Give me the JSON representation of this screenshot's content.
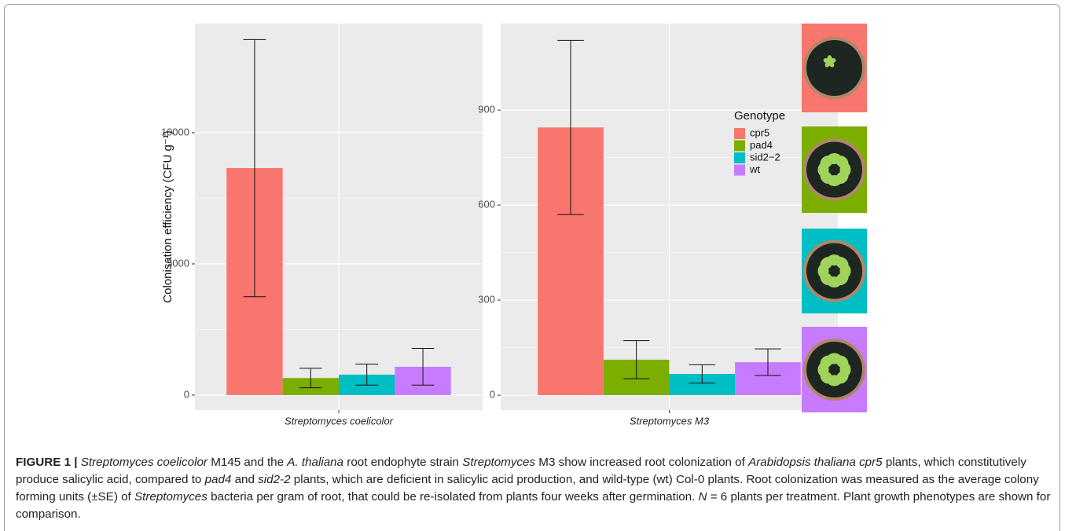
{
  "chart_data": [
    {
      "type": "bar",
      "categories": [
        "Streptomyces coelicolor"
      ],
      "ylabel": "Colonisation efficiency (CFU g⁻¹)",
      "series": [
        {
          "name": "cpr5",
          "color": "#F8766D",
          "values": [
            8650
          ],
          "errors": [
            4900
          ]
        },
        {
          "name": "pad4",
          "color": "#7CAE00",
          "values": [
            650
          ],
          "errors": [
            370
          ]
        },
        {
          "name": "sid2−2",
          "color": "#00BFC4",
          "values": [
            780
          ],
          "errors": [
            400
          ]
        },
        {
          "name": "wt",
          "color": "#C77CFF",
          "values": [
            1080
          ],
          "errors": [
            700
          ]
        }
      ],
      "ylim": [
        -570,
        14160
      ],
      "yticks": [
        0,
        5000,
        10000
      ],
      "grid": true,
      "legend": "none"
    },
    {
      "type": "bar",
      "categories": [
        "Streptomyces M3"
      ],
      "legend_title": "Genotype",
      "series": [
        {
          "name": "cpr5",
          "color": "#F8766D",
          "values": [
            845
          ],
          "errors": [
            275
          ]
        },
        {
          "name": "pad4",
          "color": "#7CAE00",
          "values": [
            112
          ],
          "errors": [
            60
          ]
        },
        {
          "name": "sid2−2",
          "color": "#00BFC4",
          "values": [
            67
          ],
          "errors": [
            29
          ]
        },
        {
          "name": "wt",
          "color": "#C77CFF",
          "values": [
            104
          ],
          "errors": [
            42
          ]
        }
      ],
      "ylim": [
        -47,
        1173
      ],
      "yticks": [
        0,
        300,
        600,
        900
      ],
      "grid": true,
      "legend": "top-right"
    }
  ],
  "caption": [
    {
      "text": "FIGURE 1 | ",
      "style": "bold"
    },
    {
      "text": "Streptomyces coelicolor",
      "style": "italic"
    },
    {
      "text": " M145 and the ",
      "style": "normal"
    },
    {
      "text": "A. thaliana",
      "style": "italic"
    },
    {
      "text": " root endophyte strain ",
      "style": "normal"
    },
    {
      "text": "Streptomyces",
      "style": "italic"
    },
    {
      "text": " M3 show increased root colonization of ",
      "style": "normal"
    },
    {
      "text": "Arabidopsis thaliana cpr5",
      "style": "italic"
    },
    {
      "text": " plants, which constitutively produce salicylic acid, compared to ",
      "style": "normal"
    },
    {
      "text": "pad4",
      "style": "italic"
    },
    {
      "text": " and ",
      "style": "normal"
    },
    {
      "text": "sid2-2",
      "style": "italic"
    },
    {
      "text": " plants, which are deficient in salicylic acid production, and wild-type (wt) Col-0 plants. Root colonization was measured as the average colony forming units (±SE) of ",
      "style": "normal"
    },
    {
      "text": "Streptomyces",
      "style": "italic"
    },
    {
      "text": " bacteria per gram of root, that could be re-isolated from plants four weeks after germination. ",
      "style": "normal"
    },
    {
      "text": "N",
      "style": "italic"
    },
    {
      "text": " = 6 plants per treatment. Plant growth phenotypes are shown for comparison.",
      "style": "normal"
    }
  ]
}
